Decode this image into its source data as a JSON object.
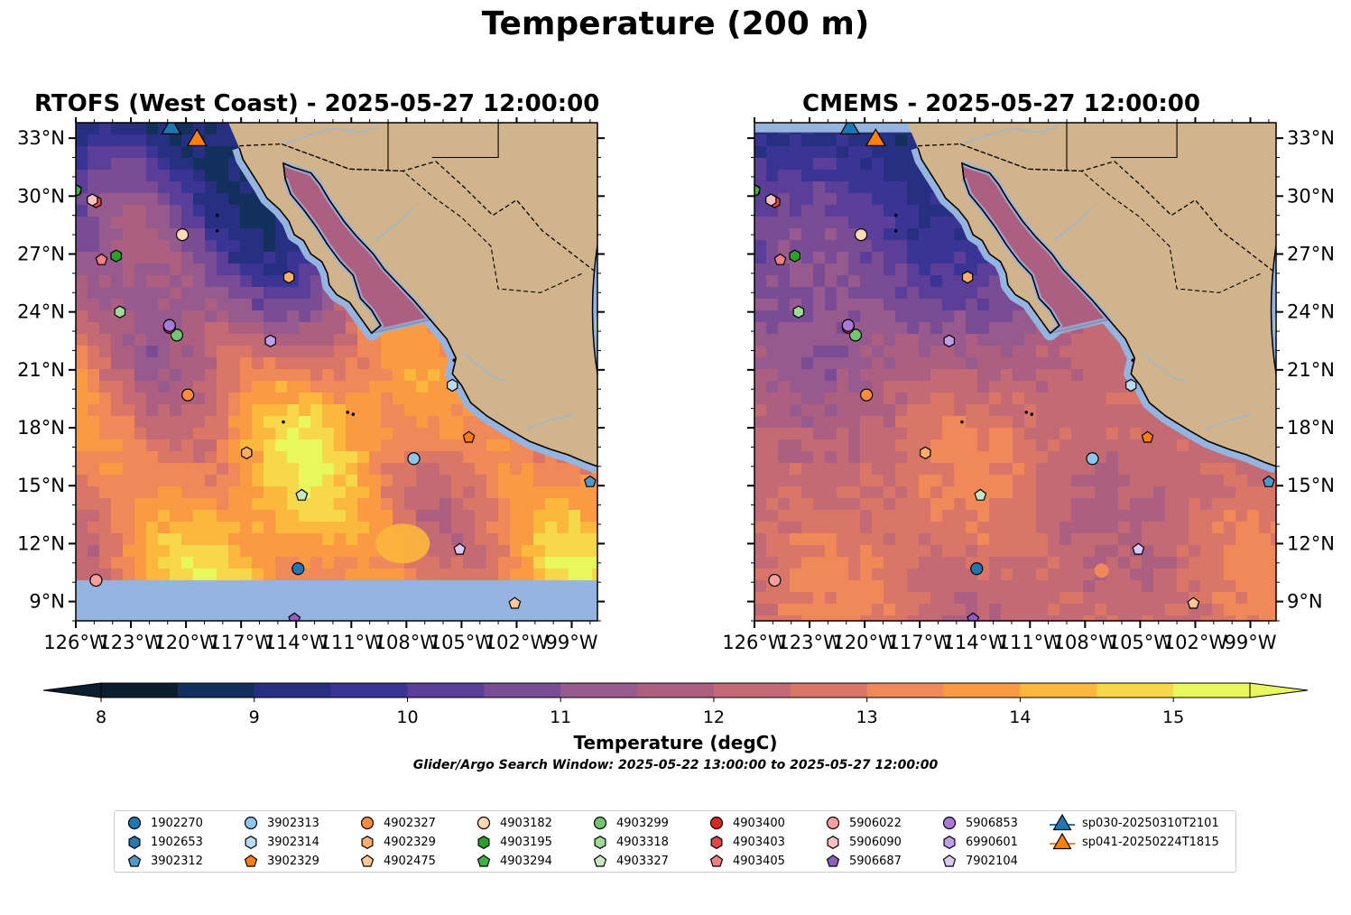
{
  "title": "Temperature (200 m)",
  "panels": [
    {
      "title": "RTOFS (West Coast) - 2025-05-27 12:00:00",
      "variant": "rtofs"
    },
    {
      "title": "CMEMS - 2025-05-27 12:00:00",
      "variant": "cmems"
    }
  ],
  "lon_ticks": [
    "126°W",
    "123°W",
    "120°W",
    "117°W",
    "114°W",
    "111°W",
    "108°W",
    "105°W",
    "102°W",
    "99°W"
  ],
  "lat_ticks": [
    "9°N",
    "12°N",
    "15°N",
    "18°N",
    "21°N",
    "24°N",
    "27°N",
    "30°N",
    "33°N"
  ],
  "colorbar": {
    "ticks": [
      "8",
      "9",
      "10",
      "11",
      "12",
      "13",
      "14",
      "15"
    ],
    "label": "Temperature (degC)",
    "range": [
      8,
      15.5
    ]
  },
  "search_window": "Glider/Argo Search Window: 2025-05-22 13:00:00 to 2025-05-27 12:00:00",
  "legend": [
    {
      "id": "1902270",
      "marker": "circle",
      "color": "#1f77b4"
    },
    {
      "id": "1902653",
      "marker": "hexagon",
      "color": "#2a78b0"
    },
    {
      "id": "3902312",
      "marker": "pentagon",
      "color": "#4f98cc"
    },
    {
      "id": "3902313",
      "marker": "circle",
      "color": "#8ec5ea"
    },
    {
      "id": "3902314",
      "marker": "hexagon",
      "color": "#b9dcf1"
    },
    {
      "id": "3902329",
      "marker": "pentagon",
      "color": "#ff7f0e"
    },
    {
      "id": "4902327",
      "marker": "circle",
      "color": "#fd8d3c"
    },
    {
      "id": "4902329",
      "marker": "hexagon",
      "color": "#fdae6b"
    },
    {
      "id": "4902475",
      "marker": "pentagon",
      "color": "#fdc896"
    },
    {
      "id": "4903182",
      "marker": "circle",
      "color": "#fdd9b5"
    },
    {
      "id": "4903195",
      "marker": "hexagon",
      "color": "#2ca02c"
    },
    {
      "id": "4903294",
      "marker": "pentagon",
      "color": "#3fb33f"
    },
    {
      "id": "4903299",
      "marker": "circle",
      "color": "#74c476"
    },
    {
      "id": "4903318",
      "marker": "hexagon",
      "color": "#a1d99b"
    },
    {
      "id": "4903327",
      "marker": "pentagon",
      "color": "#c7e9c0"
    },
    {
      "id": "4903400",
      "marker": "circle",
      "color": "#d62728"
    },
    {
      "id": "4903403",
      "marker": "hexagon",
      "color": "#e0474a"
    },
    {
      "id": "4903405",
      "marker": "pentagon",
      "color": "#f07d82"
    },
    {
      "id": "5906022",
      "marker": "circle",
      "color": "#f4a0a0"
    },
    {
      "id": "5906090",
      "marker": "hexagon",
      "color": "#f8c0c0"
    },
    {
      "id": "5906687",
      "marker": "pentagon",
      "color": "#8e5fbf"
    },
    {
      "id": "5906853",
      "marker": "circle",
      "color": "#a67ad6"
    },
    {
      "id": "6990601",
      "marker": "hexagon",
      "color": "#bfa0e6"
    },
    {
      "id": "7902104",
      "marker": "pentagon",
      "color": "#dcc8f5"
    },
    {
      "id": "sp030-20250310T2101",
      "marker": "triangle",
      "color": "#1f77b4"
    },
    {
      "id": "sp041-20250224T1815",
      "marker": "triangle",
      "color": "#ff7f0e"
    }
  ],
  "platform_positions": [
    {
      "id": "1902270",
      "lon": -113.9,
      "lat": 10.7
    },
    {
      "id": "1902653",
      "lon": -126.0,
      "lat": 30.3
    },
    {
      "id": "3902312",
      "lon": -98.0,
      "lat": 15.2
    },
    {
      "id": "3902313",
      "lon": -107.6,
      "lat": 16.4
    },
    {
      "id": "3902314",
      "lon": -105.5,
      "lat": 20.2
    },
    {
      "id": "3902329",
      "lon": -104.6,
      "lat": 17.5
    },
    {
      "id": "4902327",
      "lon": -119.9,
      "lat": 19.7
    },
    {
      "id": "4902329",
      "lon": -116.7,
      "lat": 16.7
    },
    {
      "id": "4902475",
      "lon": -102.1,
      "lat": 8.9
    },
    {
      "id": "4903182",
      "lon": -120.2,
      "lat": 28.0
    },
    {
      "id": "4903195",
      "lon": -123.8,
      "lat": 26.9
    },
    {
      "id": "4903294",
      "lon": -126.0,
      "lat": 30.3
    },
    {
      "id": "4903299",
      "lon": -120.5,
      "lat": 22.8
    },
    {
      "id": "4903318",
      "lon": -123.6,
      "lat": 24.0
    },
    {
      "id": "4903327",
      "lon": -113.7,
      "lat": 14.5
    },
    {
      "id": "4903400",
      "lon": -120.9,
      "lat": 23.2
    },
    {
      "id": "4903403",
      "lon": -124.9,
      "lat": 29.7
    },
    {
      "id": "4903405",
      "lon": -124.6,
      "lat": 26.7
    },
    {
      "id": "5906022",
      "lon": -124.9,
      "lat": 10.1
    },
    {
      "id": "5906090",
      "lon": -125.1,
      "lat": 29.8
    },
    {
      "id": "5906687",
      "lon": -114.1,
      "lat": 8.1
    },
    {
      "id": "5906853",
      "lon": -120.9,
      "lat": 23.3
    },
    {
      "id": "6990601",
      "lon": -115.4,
      "lat": 22.5
    },
    {
      "id": "7902104",
      "lon": -105.1,
      "lat": 11.7
    },
    {
      "id": "4902329",
      "lon": -114.4,
      "lat": 25.8
    }
  ],
  "glider_positions": [
    {
      "id": "sp030-20250310T2101",
      "lon": -120.8,
      "lat": 33.5
    },
    {
      "id": "sp041-20250224T1815",
      "lon": -119.4,
      "lat": 32.9
    }
  ],
  "colors": {
    "land": "#d2b48c",
    "ocean_nodata": "#96b4e0",
    "rivers": "#9ab7d3"
  }
}
